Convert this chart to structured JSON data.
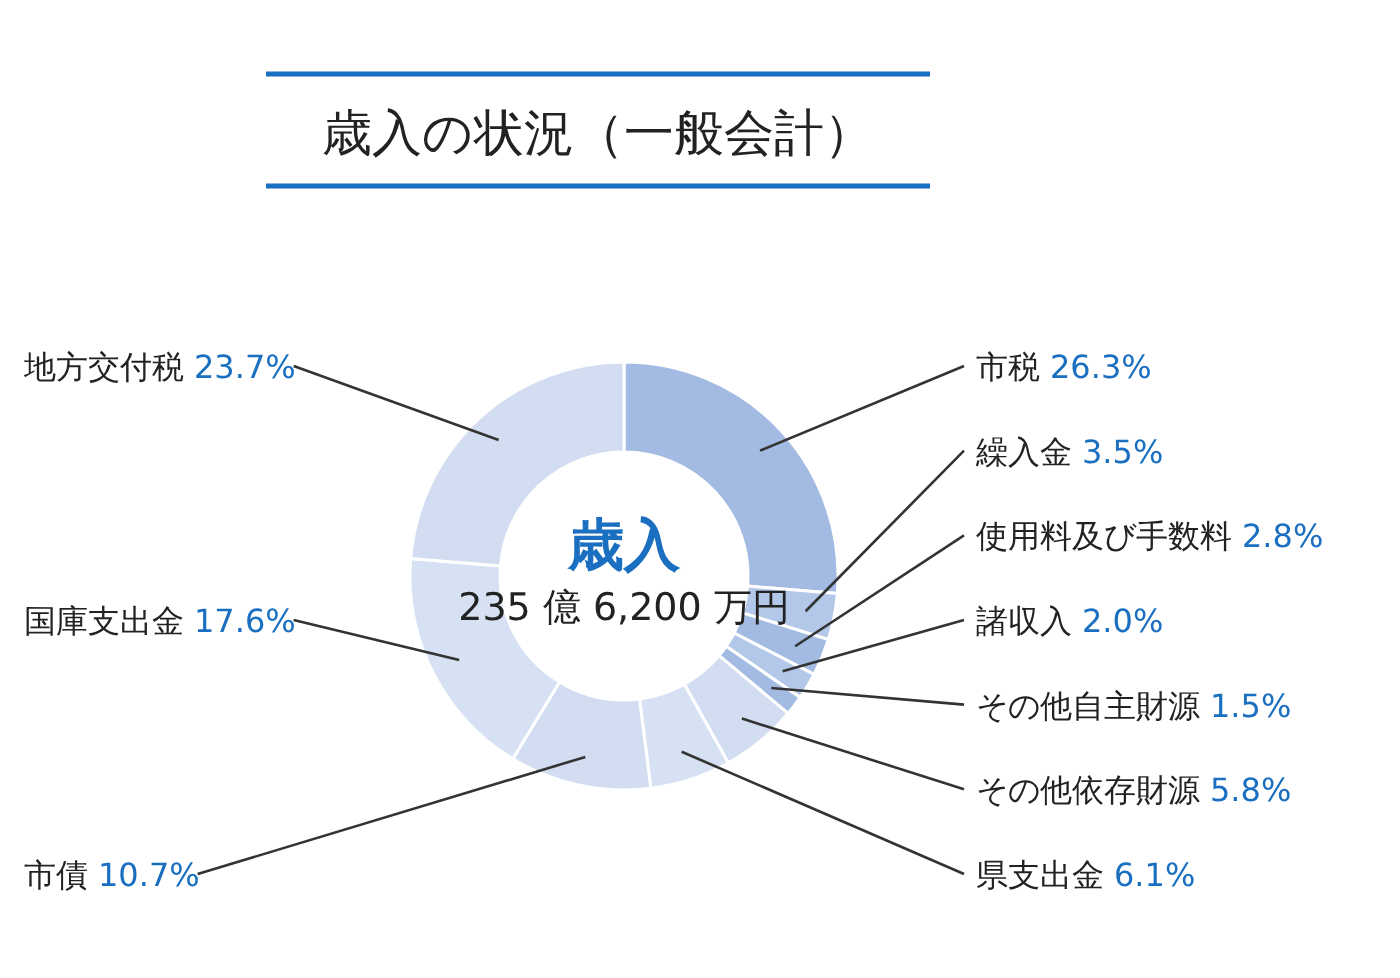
{
  "chart_data": {
    "type": "donut",
    "title": "歳入の状況（一般会計）",
    "categories": [
      "市税",
      "繰入金",
      "使用料及び手数料",
      "諸収入",
      "その他自主財源",
      "その他依存財源",
      "県支出金",
      "市債",
      "国庫支出金",
      "地方交付税"
    ],
    "values": [
      26.3,
      3.5,
      2.8,
      2.0,
      1.5,
      5.8,
      6.1,
      10.7,
      17.6,
      23.7
    ],
    "value_labels": [
      "26.3%",
      "3.5%",
      "2.8%",
      "2.0%",
      "1.5%",
      "5.8%",
      "6.1%",
      "10.7%",
      "17.6%",
      "23.7%"
    ],
    "colors": [
      "#a3bbe2",
      "#b3c7e8",
      "#a3bbe2",
      "#b3c7e8",
      "#a3bbe2",
      "#d2ddf1",
      "#d6e1f3",
      "#d2ddf1",
      "#d6e1f3",
      "#d2ddf1"
    ],
    "annotations": [
      "歳入",
      "235 億 6,200 万円"
    ]
  }
}
